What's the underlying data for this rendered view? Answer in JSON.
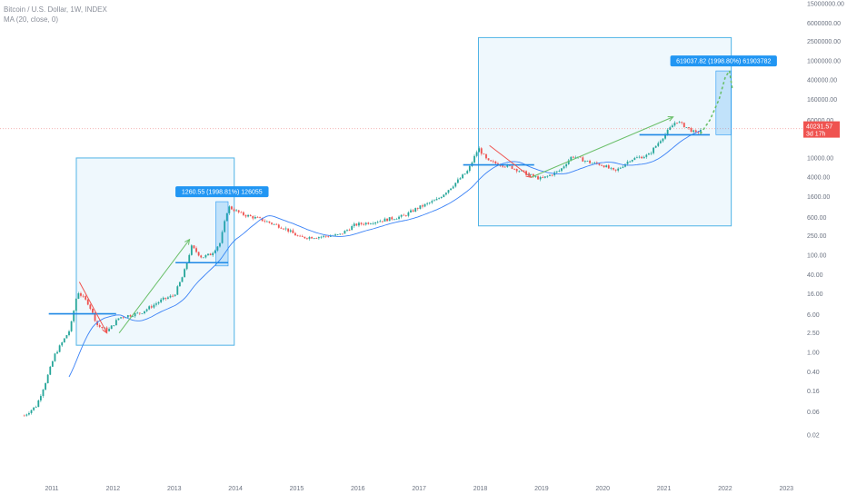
{
  "header": {
    "symbol_line": "Bitcoin / U.S. Dollar, 1W, INDEX",
    "ma_line": "MA (20, close, 0)"
  },
  "colors": {
    "up": "#26a69a",
    "down": "#ef5350",
    "ma": "#3b82f6",
    "box_stroke": "#4fb3e6",
    "box_fill": "#eaf5fc",
    "support": "#1e88e5",
    "badge": "#2196f3",
    "price_badge": "#ef5350",
    "price_line": "#f4b4b4",
    "up_arrow": "#6abf69",
    "down_arrow": "#ef5350"
  },
  "chart_data": {
    "type": "candlestick-line",
    "y_scale": "log",
    "ylim": [
      0.01,
      15000000
    ],
    "xlim": [
      2010.45,
      2023.1
    ],
    "x_ticks": [
      {
        "x": 2011,
        "label": "2011"
      },
      {
        "x": 2012,
        "label": "2012"
      },
      {
        "x": 2013,
        "label": "2013"
      },
      {
        "x": 2014,
        "label": "2014"
      },
      {
        "x": 2015,
        "label": "2015"
      },
      {
        "x": 2016,
        "label": "2016"
      },
      {
        "x": 2017,
        "label": "2017"
      },
      {
        "x": 2018,
        "label": "2018"
      },
      {
        "x": 2019,
        "label": "2019"
      },
      {
        "x": 2020,
        "label": "2020"
      },
      {
        "x": 2021,
        "label": "2021"
      },
      {
        "x": 2022,
        "label": "2022"
      },
      {
        "x": 2023,
        "label": "2023"
      }
    ],
    "y_ticks": [
      {
        "v": 15000000,
        "label": "15000000.00"
      },
      {
        "v": 6000000,
        "label": "6000000.00"
      },
      {
        "v": 2500000,
        "label": "2500000.00"
      },
      {
        "v": 1000000,
        "label": "1000000.00"
      },
      {
        "v": 400000,
        "label": "400000.00"
      },
      {
        "v": 160000,
        "label": "160000.00"
      },
      {
        "v": 60000,
        "label": "60000.00"
      },
      {
        "v": 10000,
        "label": "10000.00"
      },
      {
        "v": 4000,
        "label": "4000.00"
      },
      {
        "v": 1600,
        "label": "1600.00"
      },
      {
        "v": 600,
        "label": "600.00"
      },
      {
        "v": 250,
        "label": "250.00"
      },
      {
        "v": 100,
        "label": "100.00"
      },
      {
        "v": 40,
        "label": "40.00"
      },
      {
        "v": 16,
        "label": "16.00"
      },
      {
        "v": 6,
        "label": "6.00"
      },
      {
        "v": 2.5,
        "label": "2.50"
      },
      {
        "v": 1,
        "label": "1.00"
      },
      {
        "v": 0.4,
        "label": "0.40"
      },
      {
        "v": 0.16,
        "label": "0.16"
      },
      {
        "v": 0.06,
        "label": "0.06"
      },
      {
        "v": 0.02,
        "label": "0.02"
      }
    ],
    "price_anchors": [
      [
        2010.55,
        0.05
      ],
      [
        2010.75,
        0.08
      ],
      [
        2010.9,
        0.25
      ],
      [
        2011.05,
        0.9
      ],
      [
        2011.3,
        3
      ],
      [
        2011.42,
        18
      ],
      [
        2011.6,
        10
      ],
      [
        2011.75,
        3.5
      ],
      [
        2011.92,
        2.8
      ],
      [
        2012.1,
        5.2
      ],
      [
        2012.45,
        6.5
      ],
      [
        2012.8,
        12
      ],
      [
        2013.0,
        15
      ],
      [
        2013.15,
        40
      ],
      [
        2013.28,
        150
      ],
      [
        2013.45,
        90
      ],
      [
        2013.6,
        105
      ],
      [
        2013.75,
        180
      ],
      [
        2013.88,
        1000
      ],
      [
        2014.1,
        700
      ],
      [
        2014.4,
        550
      ],
      [
        2014.8,
        360
      ],
      [
        2015.05,
        230
      ],
      [
        2015.4,
        240
      ],
      [
        2015.7,
        260
      ],
      [
        2015.95,
        420
      ],
      [
        2016.4,
        520
      ],
      [
        2016.75,
        640
      ],
      [
        2016.95,
        900
      ],
      [
        2017.3,
        1400
      ],
      [
        2017.55,
        2700
      ],
      [
        2017.8,
        5500
      ],
      [
        2017.97,
        16000
      ],
      [
        2018.12,
        8500
      ],
      [
        2018.5,
        6500
      ],
      [
        2018.85,
        4200
      ],
      [
        2019.0,
        3700
      ],
      [
        2019.3,
        5500
      ],
      [
        2019.5,
        11000
      ],
      [
        2019.8,
        8000
      ],
      [
        2020.0,
        7200
      ],
      [
        2020.2,
        5200
      ],
      [
        2020.45,
        9300
      ],
      [
        2020.75,
        11500
      ],
      [
        2020.95,
        24000
      ],
      [
        2021.2,
        58000
      ],
      [
        2021.38,
        42000
      ],
      [
        2021.52,
        32000
      ],
      [
        2021.62,
        40231.57
      ]
    ],
    "ma_label": "MA (20, close, 0)",
    "zones": [
      {
        "x0": 2011.4,
        "x1": 2013.98,
        "y_top": 10000,
        "y_bottom": 1.4
      },
      {
        "x0": 2017.97,
        "x1": 2022.1,
        "y_top": 3000000,
        "y_bottom": 400
      }
    ],
    "support_lines": [
      {
        "x0": 2010.95,
        "x1": 2012.05,
        "y": 6.2
      },
      {
        "x0": 2013.02,
        "x1": 2013.88,
        "y": 70
      },
      {
        "x0": 2017.72,
        "x1": 2018.88,
        "y": 7200
      },
      {
        "x0": 2020.6,
        "x1": 2021.75,
        "y": 30000
      }
    ],
    "down_arrows": [
      {
        "x0": 2011.45,
        "y0": 28,
        "x1": 2011.9,
        "y1": 2.5
      },
      {
        "x0": 2018.15,
        "y0": 18000,
        "x1": 2018.83,
        "y1": 4000
      }
    ],
    "up_arrows": [
      {
        "x0": 2012.1,
        "y0": 2.5,
        "x1": 2013.25,
        "y1": 210
      },
      {
        "x0": 2018.83,
        "y0": 4000,
        "x1": 2021.15,
        "y1": 70000
      }
    ],
    "measure_boxes": [
      {
        "x0": 2013.68,
        "x1": 2013.88,
        "y0": 60,
        "y1": 1260.55,
        "label": "1260.55 (1998.81%) 126055"
      },
      {
        "x0": 2021.85,
        "x1": 2022.1,
        "y0": 30000,
        "y1": 619037.82,
        "label": "619037.82 (1998.80%) 61903782"
      }
    ],
    "projection": [
      [
        2021.6,
        32000
      ],
      [
        2021.75,
        60000
      ],
      [
        2021.9,
        160000
      ],
      [
        2022.0,
        450000
      ],
      [
        2022.07,
        620000
      ],
      [
        2022.12,
        250000
      ]
    ],
    "current_price": {
      "value": 40231.57,
      "label": "40231.57",
      "countdown": "3d 17h"
    }
  }
}
